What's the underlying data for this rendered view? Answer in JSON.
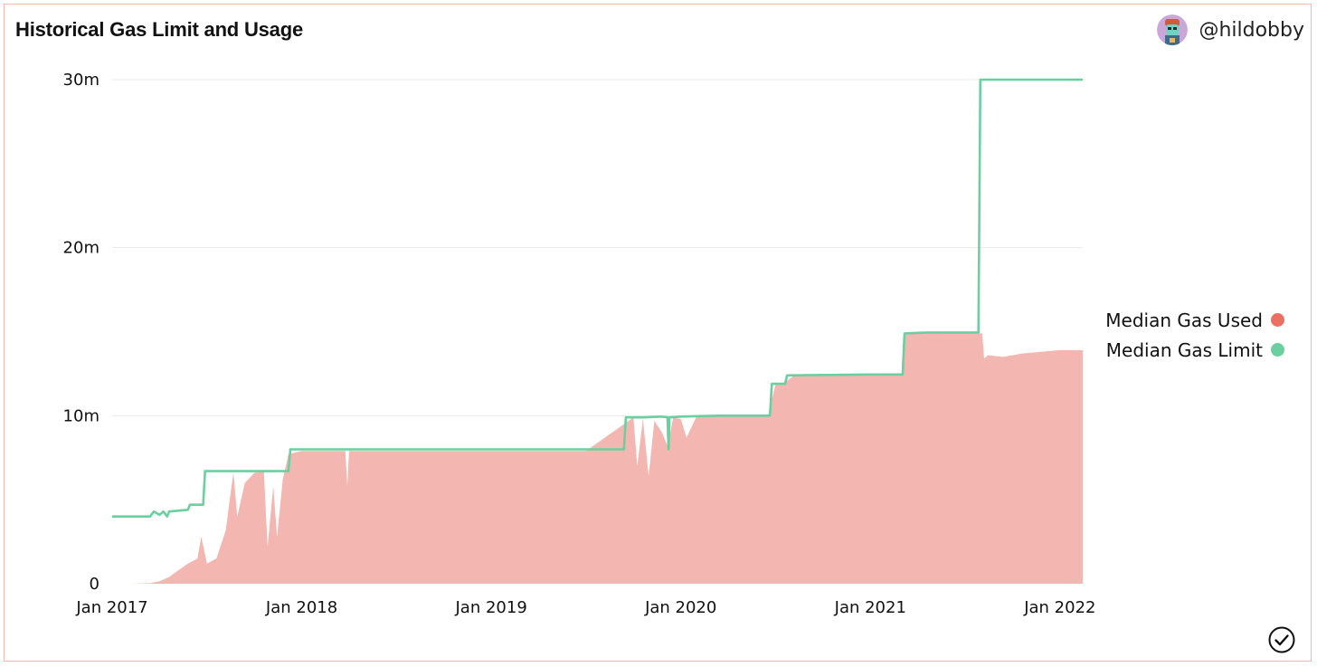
{
  "header": {
    "title": "Historical Gas Limit and Usage",
    "author_handle": "@hildobby",
    "avatar_icon": "avatar-icon"
  },
  "footer": {
    "check_icon": "check-circle-icon"
  },
  "colors": {
    "used": "#f4b6b0",
    "used_legend": "#ec6f64",
    "limit": "#6ccfa0",
    "grid": "#e8e8e8",
    "frame": "#f0b9ae"
  },
  "chart_data": {
    "type": "area",
    "title": "Historical Gas Limit and Usage",
    "xlabel": "",
    "ylabel": "",
    "x_ticks": [
      "Jan 2017",
      "Jan 2018",
      "Jan 2019",
      "Jan 2020",
      "Jan 2021",
      "Jan 2022"
    ],
    "x_tick_values": [
      2017.0,
      2018.0,
      2019.0,
      2020.0,
      2021.0,
      2022.0
    ],
    "y_ticks": [
      "0",
      "10m",
      "20m",
      "30m"
    ],
    "y_tick_values": [
      0,
      10000000,
      20000000,
      30000000
    ],
    "xlim": [
      2017.0,
      2022.12
    ],
    "ylim": [
      0,
      30000000
    ],
    "grid": true,
    "legend_position": "right",
    "series": [
      {
        "name": "Median Gas Used",
        "kind": "area",
        "x": [
          2017.0,
          2017.1,
          2017.2,
          2017.25,
          2017.3,
          2017.35,
          2017.4,
          2017.45,
          2017.47,
          2017.5,
          2017.55,
          2017.6,
          2017.62,
          2017.64,
          2017.66,
          2017.7,
          2017.75,
          2017.8,
          2017.82,
          2017.85,
          2017.87,
          2017.9,
          2017.93,
          2017.96,
          2018.0,
          2018.23,
          2018.24,
          2018.25,
          2018.5,
          2018.9,
          2019.0,
          2019.5,
          2019.75,
          2019.77,
          2019.8,
          2019.83,
          2019.86,
          2019.9,
          2019.93,
          2019.96,
          2020.0,
          2020.03,
          2020.08,
          2020.13,
          2020.3,
          2020.46,
          2020.5,
          2020.55,
          2020.6,
          2021.0,
          2021.17,
          2021.18,
          2021.3,
          2021.5,
          2021.59,
          2021.6,
          2021.62,
          2021.7,
          2021.8,
          2021.9,
          2022.0,
          2022.12
        ],
        "y": [
          0,
          0,
          30000,
          150000,
          400000,
          800000,
          1200000,
          1500000,
          2800000,
          1200000,
          1500000,
          3200000,
          5000000,
          6600000,
          4000000,
          6000000,
          6600000,
          6700000,
          2200000,
          5800000,
          2800000,
          6200000,
          7700000,
          7800000,
          7900000,
          7900000,
          5800000,
          7900000,
          7900000,
          7900000,
          7900000,
          7900000,
          9900000,
          7000000,
          9800000,
          6400000,
          9700000,
          9000000,
          8200000,
          9900000,
          9800000,
          8700000,
          9900000,
          10000000,
          10000000,
          10000000,
          11900000,
          12000000,
          12400000,
          12400000,
          12400000,
          14900000,
          14900000,
          14900000,
          14900000,
          13400000,
          13600000,
          13500000,
          13700000,
          13800000,
          13900000,
          13900000
        ]
      },
      {
        "name": "Median Gas Limit",
        "kind": "line",
        "x": [
          2017.0,
          2017.2,
          2017.22,
          2017.25,
          2017.27,
          2017.29,
          2017.3,
          2017.4,
          2017.41,
          2017.48,
          2017.49,
          2017.93,
          2017.94,
          2018.5,
          2019.5,
          2019.7,
          2019.71,
          2019.8,
          2019.9,
          2019.93,
          2019.935,
          2019.94,
          2020.0,
          2020.2,
          2020.47,
          2020.48,
          2020.55,
          2020.56,
          2021.0,
          2021.17,
          2021.18,
          2021.3,
          2021.57,
          2021.58,
          2021.6,
          2022.0,
          2022.12
        ],
        "y": [
          4000000,
          4000000,
          4300000,
          4100000,
          4300000,
          4000000,
          4300000,
          4400000,
          4700000,
          4700000,
          6700000,
          6700000,
          8000000,
          8000000,
          8000000,
          8000000,
          9900000,
          9900000,
          9950000,
          9900000,
          8000000,
          9900000,
          9950000,
          10000000,
          10000000,
          11900000,
          11900000,
          12400000,
          12450000,
          12450000,
          14900000,
          14950000,
          14950000,
          30000000,
          30000000,
          30000000,
          30000000
        ]
      }
    ]
  }
}
